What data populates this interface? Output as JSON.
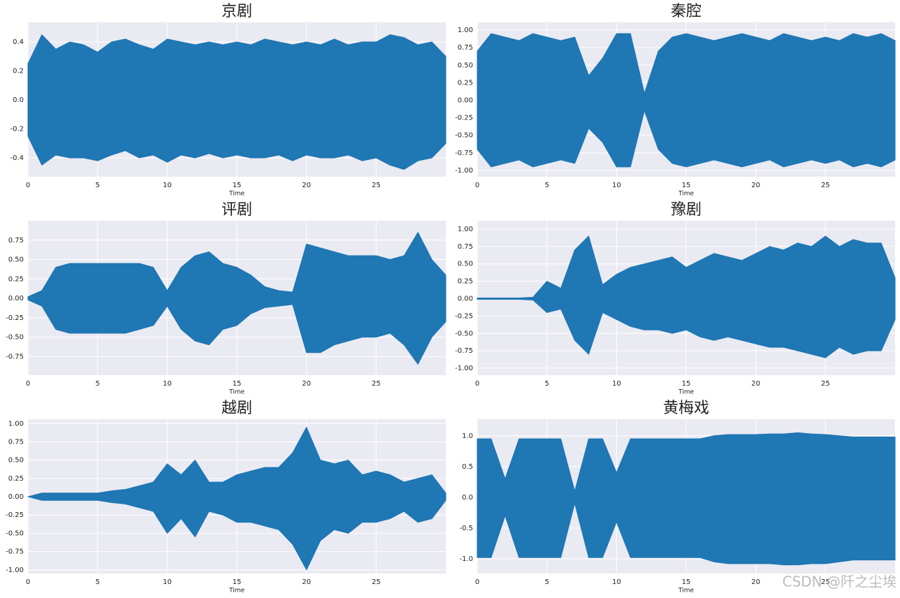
{
  "chart_data": [
    {
      "type": "area",
      "title": "京剧",
      "xlabel": "Time",
      "x": [
        0,
        1,
        2,
        3,
        4,
        5,
        6,
        7,
        8,
        9,
        10,
        11,
        12,
        13,
        14,
        15,
        16,
        17,
        18,
        19,
        20,
        21,
        22,
        23,
        24,
        25,
        26,
        27,
        28,
        29,
        30
      ],
      "series": [
        {
          "color": "#1f77b4",
          "values": [
            0.25,
            0.45,
            0.35,
            0.4,
            0.38,
            0.33,
            0.4,
            0.42,
            0.38,
            0.35,
            0.42,
            0.4,
            0.38,
            0.4,
            0.38,
            0.4,
            0.38,
            0.42,
            0.4,
            0.38,
            0.4,
            0.38,
            0.42,
            0.38,
            0.4,
            0.4,
            0.45,
            0.43,
            0.38,
            0.4,
            0.3
          ]
        },
        {
          "color": "#1f77b4",
          "values": [
            -0.25,
            -0.45,
            -0.38,
            -0.4,
            -0.4,
            -0.42,
            -0.38,
            -0.35,
            -0.4,
            -0.38,
            -0.43,
            -0.38,
            -0.4,
            -0.37,
            -0.4,
            -0.38,
            -0.4,
            -0.4,
            -0.38,
            -0.42,
            -0.38,
            -0.4,
            -0.4,
            -0.38,
            -0.42,
            -0.4,
            -0.45,
            -0.48,
            -0.42,
            -0.4,
            -0.3
          ]
        }
      ],
      "xlim": [
        0,
        30
      ],
      "ylim": [
        -0.53,
        0.535
      ],
      "xticks": [
        0,
        5,
        10,
        15,
        20,
        25
      ],
      "yticks": [
        -0.4,
        -0.2,
        {
          "value": 0,
          "label": "0.0"
        },
        0.2,
        0.4
      ],
      "grid": true
    },
    {
      "type": "area",
      "title": "秦腔",
      "xlabel": "Time",
      "x": [
        0,
        1,
        2,
        3,
        4,
        5,
        6,
        7,
        8,
        9,
        10,
        11,
        12,
        13,
        14,
        15,
        16,
        17,
        18,
        19,
        20,
        21,
        22,
        23,
        24,
        25,
        26,
        27,
        28,
        29,
        30
      ],
      "series": [
        {
          "color": "#1f77b4",
          "values": [
            0.7,
            0.95,
            0.9,
            0.85,
            0.95,
            0.9,
            0.85,
            0.9,
            0.35,
            0.6,
            0.95,
            0.95,
            0.1,
            0.7,
            0.9,
            0.95,
            0.9,
            0.85,
            0.9,
            0.95,
            0.9,
            0.85,
            0.95,
            0.9,
            0.85,
            0.9,
            0.85,
            0.95,
            0.9,
            0.95,
            0.85
          ]
        },
        {
          "color": "#1f77b4",
          "values": [
            -0.7,
            -0.95,
            -0.9,
            -0.85,
            -0.95,
            -0.9,
            -0.85,
            -0.9,
            -0.4,
            -0.6,
            -0.95,
            -0.95,
            -0.15,
            -0.7,
            -0.9,
            -0.95,
            -0.9,
            -0.85,
            -0.9,
            -0.95,
            -0.9,
            -0.85,
            -0.95,
            -0.9,
            -0.85,
            -0.9,
            -0.85,
            -0.95,
            -0.9,
            -0.95,
            -0.85
          ]
        }
      ],
      "xlim": [
        0,
        30
      ],
      "ylim": [
        -1.09,
        1.11
      ],
      "xticks": [
        0,
        5,
        10,
        15,
        20,
        25
      ],
      "yticks": [
        {
          "value": -1,
          "label": "-1.00"
        },
        -0.75,
        {
          "value": -0.5,
          "label": "-0.50"
        },
        -0.25,
        {
          "value": 0,
          "label": "0.00"
        },
        0.25,
        {
          "value": 0.5,
          "label": "0.50"
        },
        0.75,
        {
          "value": 1,
          "label": "1.00"
        }
      ],
      "grid": true
    },
    {
      "type": "area",
      "title": "评剧",
      "xlabel": "Time",
      "x": [
        0,
        1,
        2,
        3,
        4,
        5,
        6,
        7,
        8,
        9,
        10,
        11,
        12,
        13,
        14,
        15,
        16,
        17,
        18,
        19,
        20,
        21,
        22,
        23,
        24,
        25,
        26,
        27,
        28,
        29,
        30
      ],
      "series": [
        {
          "color": "#1f77b4",
          "values": [
            0.02,
            0.1,
            0.4,
            0.45,
            0.45,
            0.45,
            0.45,
            0.45,
            0.45,
            0.4,
            0.1,
            0.4,
            0.55,
            0.6,
            0.45,
            0.4,
            0.3,
            0.15,
            0.1,
            0.08,
            0.7,
            0.65,
            0.6,
            0.55,
            0.55,
            0.55,
            0.5,
            0.55,
            0.85,
            0.5,
            0.3
          ]
        },
        {
          "color": "#1f77b4",
          "values": [
            -0.02,
            -0.1,
            -0.4,
            -0.45,
            -0.45,
            -0.45,
            -0.45,
            -0.45,
            -0.4,
            -0.35,
            -0.1,
            -0.4,
            -0.55,
            -0.6,
            -0.4,
            -0.35,
            -0.2,
            -0.12,
            -0.1,
            -0.08,
            -0.7,
            -0.7,
            -0.6,
            -0.55,
            -0.5,
            -0.5,
            -0.45,
            -0.6,
            -0.85,
            -0.5,
            -0.3
          ]
        }
      ],
      "xlim": [
        0,
        30
      ],
      "ylim": [
        -0.99,
        1.0
      ],
      "xticks": [
        0,
        5,
        10,
        15,
        20,
        25
      ],
      "yticks": [
        -0.75,
        {
          "value": -0.5,
          "label": "-0.50"
        },
        -0.25,
        {
          "value": 0,
          "label": "0.00"
        },
        0.25,
        {
          "value": 0.5,
          "label": "0.50"
        },
        0.75
      ],
      "grid": true
    },
    {
      "type": "area",
      "title": "豫剧",
      "xlabel": "Time",
      "x": [
        0,
        1,
        2,
        3,
        4,
        5,
        6,
        7,
        8,
        9,
        10,
        11,
        12,
        13,
        14,
        15,
        16,
        17,
        18,
        19,
        20,
        21,
        22,
        23,
        24,
        25,
        26,
        27,
        28,
        29,
        30
      ],
      "series": [
        {
          "color": "#1f77b4",
          "values": [
            0.01,
            0.01,
            0.01,
            0.01,
            0.02,
            0.25,
            0.15,
            0.7,
            0.9,
            0.2,
            0.35,
            0.45,
            0.5,
            0.55,
            0.6,
            0.45,
            0.55,
            0.65,
            0.6,
            0.55,
            0.65,
            0.75,
            0.7,
            0.8,
            0.75,
            0.9,
            0.75,
            0.85,
            0.8,
            0.8,
            0.3
          ]
        },
        {
          "color": "#1f77b4",
          "values": [
            -0.01,
            -0.01,
            -0.01,
            -0.01,
            -0.02,
            -0.2,
            -0.15,
            -0.6,
            -0.8,
            -0.2,
            -0.3,
            -0.4,
            -0.45,
            -0.45,
            -0.5,
            -0.45,
            -0.55,
            -0.6,
            -0.55,
            -0.6,
            -0.65,
            -0.7,
            -0.7,
            -0.75,
            -0.8,
            -0.85,
            -0.7,
            -0.8,
            -0.75,
            -0.75,
            -0.3
          ]
        }
      ],
      "xlim": [
        0,
        30
      ],
      "ylim": [
        -1.1,
        1.12
      ],
      "xticks": [
        0,
        5,
        10,
        15,
        20,
        25
      ],
      "yticks": [
        {
          "value": -1,
          "label": "-1.00"
        },
        -0.75,
        {
          "value": -0.5,
          "label": "-0.50"
        },
        -0.25,
        {
          "value": 0,
          "label": "0.00"
        },
        0.25,
        {
          "value": 0.5,
          "label": "0.50"
        },
        0.75,
        {
          "value": 1,
          "label": "1.00"
        }
      ],
      "grid": true
    },
    {
      "type": "area",
      "title": "越剧",
      "xlabel": "Time",
      "x": [
        0,
        1,
        2,
        3,
        4,
        5,
        6,
        7,
        8,
        9,
        10,
        11,
        12,
        13,
        14,
        15,
        16,
        17,
        18,
        19,
        20,
        21,
        22,
        23,
        24,
        25,
        26,
        27,
        28,
        29,
        30
      ],
      "series": [
        {
          "color": "#1f77b4",
          "values": [
            0.0,
            0.05,
            0.05,
            0.05,
            0.05,
            0.05,
            0.08,
            0.1,
            0.15,
            0.2,
            0.45,
            0.3,
            0.5,
            0.2,
            0.2,
            0.3,
            0.35,
            0.4,
            0.4,
            0.6,
            0.95,
            0.5,
            0.45,
            0.5,
            0.3,
            0.35,
            0.3,
            0.2,
            0.25,
            0.3,
            0.05
          ]
        },
        {
          "color": "#1f77b4",
          "values": [
            0.0,
            -0.05,
            -0.05,
            -0.05,
            -0.05,
            -0.05,
            -0.08,
            -0.1,
            -0.15,
            -0.2,
            -0.5,
            -0.3,
            -0.55,
            -0.2,
            -0.25,
            -0.35,
            -0.35,
            -0.4,
            -0.45,
            -0.65,
            -1.0,
            -0.6,
            -0.45,
            -0.5,
            -0.35,
            -0.35,
            -0.3,
            -0.2,
            -0.35,
            -0.3,
            -0.05
          ]
        }
      ],
      "xlim": [
        0,
        30
      ],
      "ylim": [
        -1.05,
        1.06
      ],
      "xticks": [
        0,
        5,
        10,
        15,
        20,
        25
      ],
      "yticks": [
        {
          "value": -1,
          "label": "-1.00"
        },
        -0.75,
        {
          "value": -0.5,
          "label": "-0.50"
        },
        -0.25,
        {
          "value": 0,
          "label": "0.00"
        },
        0.25,
        {
          "value": 0.5,
          "label": "0.50"
        },
        0.75,
        {
          "value": 1,
          "label": "1.00"
        }
      ],
      "grid": true
    },
    {
      "type": "area",
      "title": "黄梅戏",
      "xlabel": "Time",
      "x": [
        0,
        1,
        2,
        3,
        4,
        5,
        6,
        7,
        8,
        9,
        10,
        11,
        12,
        13,
        14,
        15,
        16,
        17,
        18,
        19,
        20,
        21,
        22,
        23,
        24,
        25,
        26,
        27,
        28,
        29,
        30
      ],
      "series": [
        {
          "color": "#1f77b4",
          "values": [
            0.95,
            0.95,
            0.3,
            0.95,
            0.95,
            0.95,
            0.95,
            0.1,
            0.95,
            0.95,
            0.4,
            0.95,
            0.95,
            0.95,
            0.95,
            0.95,
            0.95,
            1.0,
            1.02,
            1.02,
            1.02,
            1.03,
            1.03,
            1.05,
            1.03,
            1.02,
            1.0,
            0.98,
            0.98,
            0.98,
            0.98
          ]
        },
        {
          "color": "#1f77b4",
          "values": [
            -0.98,
            -0.98,
            -0.3,
            -0.98,
            -0.98,
            -0.98,
            -0.98,
            -0.1,
            -0.98,
            -0.98,
            -0.4,
            -0.98,
            -0.98,
            -0.98,
            -0.98,
            -0.98,
            -0.98,
            -1.05,
            -1.08,
            -1.08,
            -1.08,
            -1.08,
            -1.1,
            -1.1,
            -1.08,
            -1.08,
            -1.05,
            -1.02,
            -1.02,
            -1.02,
            -1.02
          ]
        }
      ],
      "xlim": [
        0,
        30
      ],
      "ylim": [
        -1.24,
        1.27
      ],
      "xticks": [
        0,
        5,
        10,
        15,
        20,
        25
      ],
      "yticks": [
        {
          "value": -1,
          "label": "-1.0"
        },
        -0.5,
        {
          "value": 0,
          "label": "0.0"
        },
        0.5,
        {
          "value": 1,
          "label": "1.0"
        }
      ],
      "grid": true
    }
  ],
  "watermark": "CSDN @阡之尘埃"
}
